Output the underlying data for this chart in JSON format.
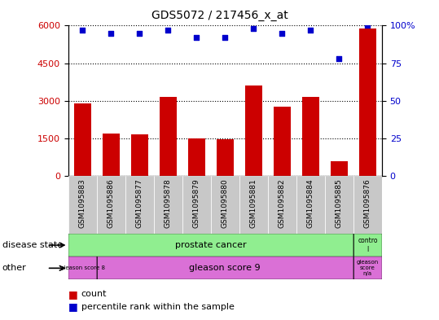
{
  "title": "GDS5072 / 217456_x_at",
  "samples": [
    "GSM1095883",
    "GSM1095886",
    "GSM1095877",
    "GSM1095878",
    "GSM1095879",
    "GSM1095880",
    "GSM1095881",
    "GSM1095882",
    "GSM1095884",
    "GSM1095885",
    "GSM1095876"
  ],
  "counts": [
    2900,
    1700,
    1650,
    3150,
    1500,
    1480,
    3600,
    2750,
    3150,
    600,
    5900
  ],
  "percentiles": [
    97,
    95,
    95,
    97,
    92,
    92,
    98,
    95,
    97,
    78,
    100
  ],
  "ylim_left": [
    0,
    6000
  ],
  "ylim_right": [
    0,
    100
  ],
  "yticks_left": [
    0,
    1500,
    3000,
    4500,
    6000
  ],
  "yticks_right": [
    0,
    25,
    50,
    75,
    100
  ],
  "bar_color": "#cc0000",
  "dot_color": "#0000cc",
  "plot_bg": "#ffffff",
  "tick_bg": "#c8c8c8",
  "disease_color": "#90ee90",
  "other_color": "#da70d6",
  "prostate_label": "prostate cancer",
  "control_label": "contro\nl",
  "gleason8_label": "gleason score 8",
  "gleason9_label": "gleason score 9",
  "gleasonNA_label": "gleason\nscore\nn/a",
  "disease_state_text": "disease state",
  "other_text": "other",
  "legend_count": "count",
  "legend_pct": "percentile rank within the sample"
}
